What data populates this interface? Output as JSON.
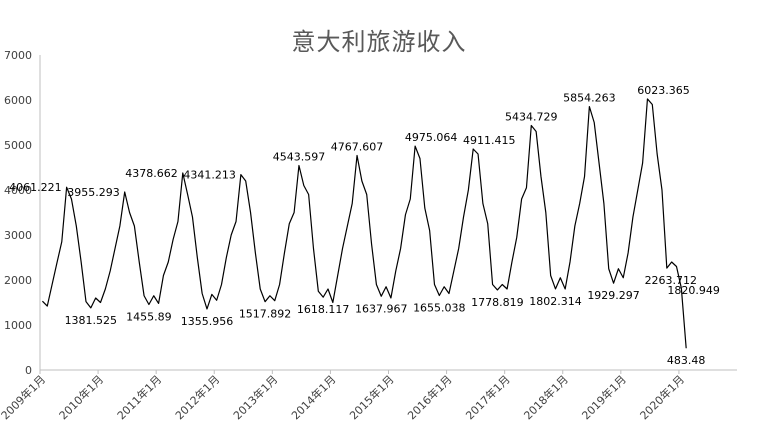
{
  "chart_data": {
    "type": "line",
    "title": "意大利旅游收入",
    "xlabel": "",
    "ylabel": "",
    "ylim": [
      0,
      7000
    ],
    "yticks": [
      "0",
      "1000",
      "2000",
      "3000",
      "4000",
      "5000",
      "6000",
      "7000"
    ],
    "xtick_labels": [
      "2009年1月",
      "2010年1月",
      "2011年1月",
      "2012年1月",
      "2013年1月",
      "2014年1月",
      "2015年1月",
      "2016年1月",
      "2017年1月",
      "2018年1月",
      "2019年1月",
      "2020年1月"
    ],
    "grid": false,
    "legend": "none",
    "line_color": "#000000",
    "series": [
      {
        "values": [
          1530,
          1420,
          1900,
          2380,
          2850,
          4061.221,
          3800,
          3200,
          2400,
          1520,
          1381.525,
          1600,
          1500,
          1800,
          2200,
          2700,
          3200,
          3955.293,
          3500,
          3200,
          2400,
          1650,
          1455.89,
          1650,
          1480,
          2100,
          2400,
          2900,
          3300,
          4378.662,
          3900,
          3400,
          2500,
          1700,
          1355.956,
          1680,
          1550,
          1900,
          2500,
          3000,
          3300,
          4341.213,
          4200,
          3500,
          2600,
          1800,
          1517.892,
          1650,
          1540,
          1900,
          2600,
          3250,
          3500,
          4543.597,
          4100,
          3900,
          2700,
          1750,
          1618.117,
          1800,
          1500,
          2100,
          2700,
          3200,
          3700,
          4767.607,
          4200,
          3900,
          2800,
          1900,
          1637.967,
          1850,
          1600,
          2200,
          2700,
          3450,
          3800,
          4975.064,
          4700,
          3600,
          3100,
          1900,
          1655.038,
          1850,
          1700,
          2200,
          2700,
          3400,
          4000,
          4911.415,
          4800,
          3700,
          3250,
          1900,
          1778.819,
          1900,
          1800,
          2400,
          2950,
          3800,
          4050,
          5434.729,
          5300,
          4300,
          3500,
          2100,
          1802.314,
          2050,
          1800,
          2400,
          3200,
          3700,
          4300,
          5854.263,
          5500,
          4600,
          3700,
          2250,
          1929.297,
          2250,
          2050,
          2600,
          3400,
          4000,
          4600,
          6023.365,
          5900,
          4800,
          4000,
          2263.712,
          2400,
          2300,
          1820.949,
          483.48
        ]
      }
    ],
    "data_labels": [
      {
        "index": 5,
        "text": "4061.221",
        "pos": "left"
      },
      {
        "index": 10,
        "text": "1381.525",
        "pos": "below"
      },
      {
        "index": 17,
        "text": "3955.293",
        "pos": "left"
      },
      {
        "index": 22,
        "text": "1455.89",
        "pos": "below"
      },
      {
        "index": 29,
        "text": "4378.662",
        "pos": "left"
      },
      {
        "index": 34,
        "text": "1355.956",
        "pos": "below"
      },
      {
        "index": 41,
        "text": "4341.213",
        "pos": "left"
      },
      {
        "index": 46,
        "text": "1517.892",
        "pos": "below"
      },
      {
        "index": 53,
        "text": "4543.597",
        "pos": "above"
      },
      {
        "index": 58,
        "text": "1618.117",
        "pos": "below"
      },
      {
        "index": 65,
        "text": "4767.607",
        "pos": "above"
      },
      {
        "index": 70,
        "text": "1637.967",
        "pos": "below"
      },
      {
        "index": 77,
        "text": "4975.064",
        "pos": "above-right"
      },
      {
        "index": 82,
        "text": "1655.038",
        "pos": "below"
      },
      {
        "index": 89,
        "text": "4911.415",
        "pos": "above-right"
      },
      {
        "index": 94,
        "text": "1778.819",
        "pos": "below"
      },
      {
        "index": 101,
        "text": "5434.729",
        "pos": "above"
      },
      {
        "index": 106,
        "text": "1802.314",
        "pos": "below"
      },
      {
        "index": 113,
        "text": "5854.263",
        "pos": "above"
      },
      {
        "index": 118,
        "text": "1929.297",
        "pos": "below"
      },
      {
        "index": 125,
        "text": "6023.365",
        "pos": "above-right"
      },
      {
        "index": 129,
        "text": "2263.712",
        "pos": "below-right"
      },
      {
        "index": 132,
        "text": "1820.949",
        "pos": "right"
      },
      {
        "index": 133,
        "text": "483.48",
        "pos": "below"
      }
    ]
  }
}
